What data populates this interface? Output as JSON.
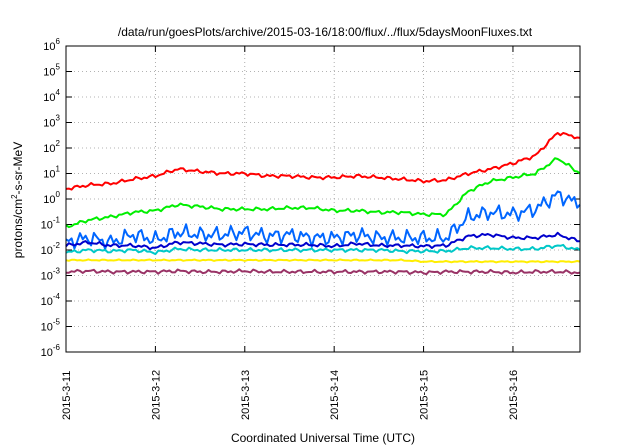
{
  "chart_data": {
    "type": "line",
    "title": "/data/run/goesPlots/archive/2015-03-16/18:00/flux/../flux/5daysMoonFluxes.txt",
    "xlabel": "Coordinated Universal Time (UTC)",
    "ylabel": "protons/cm²-s-sr-MeV",
    "ylabel_parts": {
      "pre": "protons/cm",
      "sup": "2",
      "post": "-s-sr-MeV"
    },
    "yscale": "log",
    "ylim": [
      1e-06,
      1000000.0
    ],
    "xlim": [
      "2015-03-11",
      "2015-03-16 18:00"
    ],
    "grid": true,
    "legend": "none",
    "x_ticks": [
      "2015-3-11",
      "2015-3-12",
      "2015-3-13",
      "2015-3-14",
      "2015-3-15",
      "2015-3-16"
    ],
    "y_ticks": [
      {
        "value": 1e-06,
        "base": "10",
        "exp": "-6"
      },
      {
        "value": 1e-05,
        "base": "10",
        "exp": "-5"
      },
      {
        "value": 0.0001,
        "base": "10",
        "exp": "-4"
      },
      {
        "value": 0.001,
        "base": "10",
        "exp": "-3"
      },
      {
        "value": 0.01,
        "base": "10",
        "exp": "-2"
      },
      {
        "value": 0.1,
        "base": "10",
        "exp": "-1"
      },
      {
        "value": 1,
        "base": "10",
        "exp": "0"
      },
      {
        "value": 10.0,
        "base": "10",
        "exp": "1"
      },
      {
        "value": 100.0,
        "base": "10",
        "exp": "2"
      },
      {
        "value": 1000.0,
        "base": "10",
        "exp": "3"
      },
      {
        "value": 10000.0,
        "base": "10",
        "exp": "4"
      },
      {
        "value": 100000.0,
        "base": "10",
        "exp": "5"
      },
      {
        "value": 1000000.0,
        "base": "10",
        "exp": "6"
      }
    ],
    "x": [
      "2015-03-11 00:00",
      "2015-03-11 06:00",
      "2015-03-11 12:00",
      "2015-03-11 18:00",
      "2015-03-12 00:00",
      "2015-03-12 06:00",
      "2015-03-12 12:00",
      "2015-03-12 18:00",
      "2015-03-13 00:00",
      "2015-03-13 06:00",
      "2015-03-13 12:00",
      "2015-03-13 18:00",
      "2015-03-14 00:00",
      "2015-03-14 06:00",
      "2015-03-14 12:00",
      "2015-03-14 18:00",
      "2015-03-15 00:00",
      "2015-03-15 06:00",
      "2015-03-15 12:00",
      "2015-03-15 18:00",
      "2015-03-16 00:00",
      "2015-03-16 06:00",
      "2015-03-16 12:00",
      "2015-03-16 18:00"
    ],
    "series": [
      {
        "color": "#ff0000",
        "values": [
          2.5,
          3.5,
          4.0,
          6.0,
          8.0,
          15.0,
          12.0,
          10.0,
          10.0,
          8.0,
          8.0,
          7.0,
          7.0,
          8.0,
          7.0,
          6.0,
          5.0,
          5.5,
          10.0,
          15.0,
          25.0,
          50.0,
          400.0,
          250.0
        ]
      },
      {
        "color": "#00ee00",
        "values": [
          0.08,
          0.15,
          0.2,
          0.3,
          0.35,
          0.6,
          0.5,
          0.4,
          0.4,
          0.4,
          0.45,
          0.45,
          0.35,
          0.35,
          0.3,
          0.3,
          0.25,
          0.25,
          2.0,
          5.0,
          7.0,
          10.0,
          40.0,
          10.0
        ]
      },
      {
        "color": "#0066ff",
        "values": [
          0.02,
          0.03,
          0.02,
          0.04,
          0.025,
          0.05,
          0.04,
          0.04,
          0.05,
          0.035,
          0.04,
          0.03,
          0.03,
          0.04,
          0.03,
          0.03,
          0.03,
          0.03,
          0.2,
          0.3,
          0.25,
          0.4,
          1.5,
          0.6
        ]
      },
      {
        "color": "#0000cc",
        "values": [
          0.015,
          0.02,
          0.015,
          0.015,
          0.012,
          0.02,
          0.018,
          0.016,
          0.017,
          0.016,
          0.016,
          0.016,
          0.014,
          0.018,
          0.015,
          0.015,
          0.014,
          0.015,
          0.035,
          0.04,
          0.03,
          0.03,
          0.04,
          0.022
        ]
      },
      {
        "color": "#00c8c8",
        "values": [
          0.008,
          0.01,
          0.009,
          0.01,
          0.008,
          0.011,
          0.01,
          0.01,
          0.01,
          0.01,
          0.01,
          0.01,
          0.01,
          0.01,
          0.01,
          0.009,
          0.009,
          0.009,
          0.012,
          0.012,
          0.011,
          0.011,
          0.015,
          0.01
        ]
      },
      {
        "color": "#ffee00",
        "values": [
          0.004,
          0.004,
          0.004,
          0.004,
          0.004,
          0.004,
          0.004,
          0.004,
          0.004,
          0.004,
          0.004,
          0.004,
          0.004,
          0.004,
          0.004,
          0.004,
          0.0035,
          0.0035,
          0.0035,
          0.0035,
          0.0035,
          0.0035,
          0.0035,
          0.0035
        ]
      },
      {
        "color": "#993366",
        "values": [
          0.0014,
          0.0015,
          0.0014,
          0.0014,
          0.0014,
          0.0015,
          0.0014,
          0.0014,
          0.0015,
          0.0014,
          0.0014,
          0.0014,
          0.0014,
          0.0014,
          0.0014,
          0.0014,
          0.0013,
          0.0014,
          0.0014,
          0.0014,
          0.0013,
          0.0014,
          0.0014,
          0.0013
        ]
      }
    ]
  }
}
